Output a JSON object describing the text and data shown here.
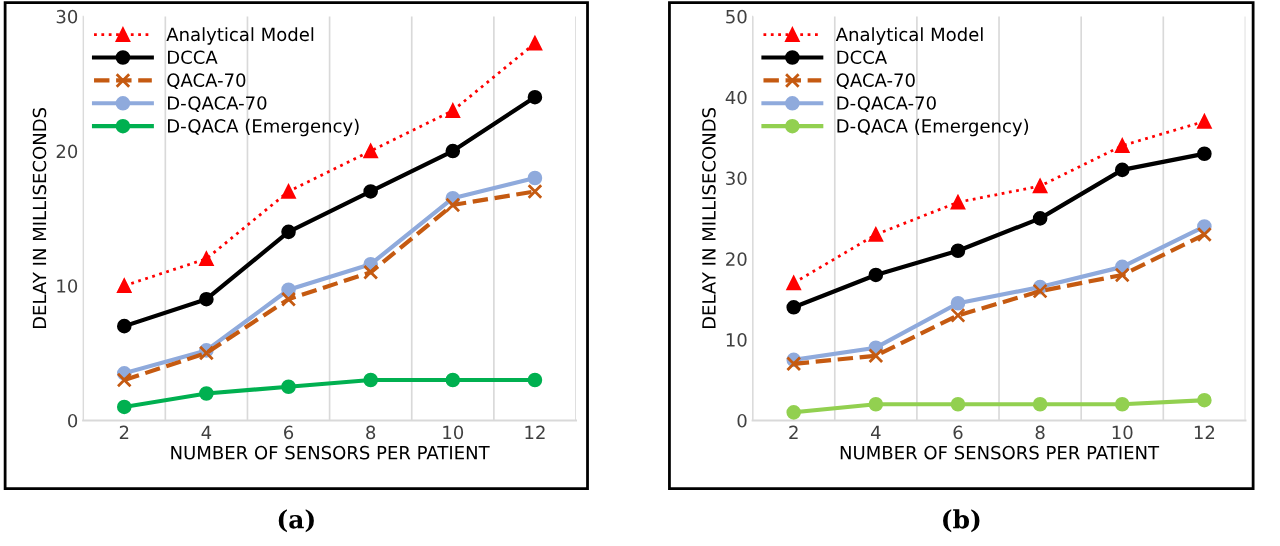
{
  "chart_data": [
    {
      "type": "line",
      "ylabel": "DELAY IN MILLISECONDS",
      "xlabel": "NUMBER OF SENSORS PER PATIENT",
      "categories": [
        "2",
        "4",
        "6",
        "8",
        "10",
        "12"
      ],
      "ylim": [
        0,
        30
      ],
      "yticks": [
        0,
        10,
        20,
        30
      ],
      "grid": "x",
      "legend": "top left",
      "annotations": [
        "(a)"
      ],
      "series": [
        {
          "name": "Analytical Model",
          "color": "#ff0000",
          "marker": "triangle",
          "line_style": "dotted",
          "values": [
            10,
            12,
            17,
            20,
            23,
            28
          ]
        },
        {
          "name": "DCCA",
          "color": "#000000",
          "marker": "circle",
          "line_style": "solid",
          "values": [
            7,
            9,
            14,
            17,
            20,
            24
          ]
        },
        {
          "name": "QACA-70",
          "color": "#c55a11",
          "marker": "cross",
          "line_style": "dashed",
          "values": [
            3,
            5,
            9,
            11,
            16,
            17
          ]
        },
        {
          "name": "D-QACA-70",
          "color": "#8faadc",
          "marker": "circle",
          "line_style": "solid",
          "values": [
            3.5,
            5.2,
            9.7,
            11.6,
            16.5,
            18
          ]
        },
        {
          "name": "D-QACA (Emergency)",
          "color": "#00b050",
          "marker": "circle",
          "line_style": "solid",
          "values": [
            1,
            2,
            2.5,
            3,
            3,
            3
          ]
        }
      ]
    },
    {
      "type": "line",
      "ylabel": "DELAY IN MILLISECONDS",
      "xlabel": "NUMBER OF SENSORS PER PATIENT",
      "categories": [
        "2",
        "4",
        "6",
        "8",
        "10",
        "12"
      ],
      "ylim": [
        0,
        50
      ],
      "yticks": [
        0,
        10,
        20,
        30,
        40,
        50
      ],
      "grid": "x",
      "legend": "top left",
      "annotations": [
        "(b)"
      ],
      "series": [
        {
          "name": "Analytical Model",
          "color": "#ff0000",
          "marker": "triangle",
          "line_style": "dotted",
          "values": [
            17,
            23,
            27,
            29,
            34,
            37
          ]
        },
        {
          "name": "DCCA",
          "color": "#000000",
          "marker": "circle",
          "line_style": "solid",
          "values": [
            14,
            18,
            21,
            25,
            31,
            33
          ]
        },
        {
          "name": "QACA-70",
          "color": "#c55a11",
          "marker": "cross",
          "line_style": "dashed",
          "values": [
            7,
            8,
            13,
            16,
            18,
            23
          ]
        },
        {
          "name": "D-QACA-70",
          "color": "#8faadc",
          "marker": "circle",
          "line_style": "solid",
          "values": [
            7.5,
            9,
            14.5,
            16.5,
            19,
            24
          ]
        },
        {
          "name": "D-QACA (Emergency)",
          "color": "#92d050",
          "marker": "circle",
          "line_style": "solid",
          "values": [
            1,
            2,
            2,
            2,
            2,
            2.5
          ]
        }
      ]
    }
  ]
}
